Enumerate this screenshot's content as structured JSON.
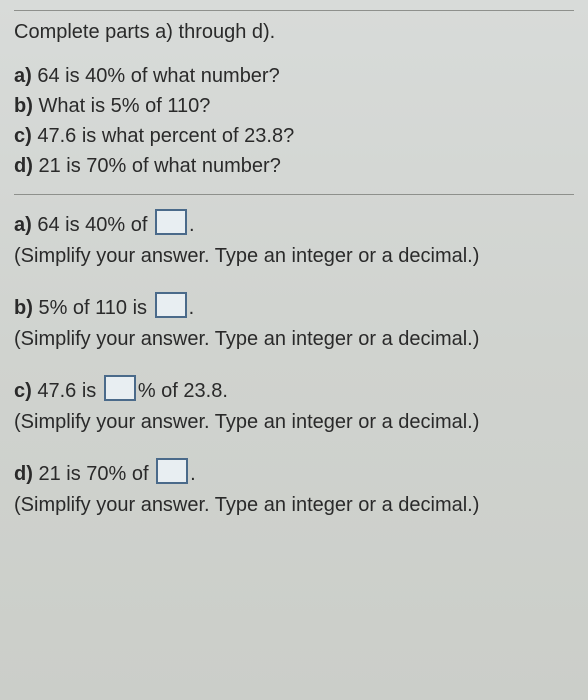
{
  "intro": "Complete parts a) through d).",
  "questions": {
    "a": {
      "label": "a)",
      "text": " 64 is 40% of what number?"
    },
    "b": {
      "label": "b)",
      "text": " What is 5% of 110?"
    },
    "c": {
      "label": "c)",
      "text": " 47.6 is what percent of 23.8?"
    },
    "d": {
      "label": "d)",
      "text": " 21 is 70% of what number?"
    }
  },
  "answers": {
    "a": {
      "label": "a)",
      "before": " 64 is 40% of ",
      "after": ".",
      "instr": "(Simplify your answer. Type an integer or a decimal.)"
    },
    "b": {
      "label": "b)",
      "before": " 5% of 110 is ",
      "after": ".",
      "instr": "(Simplify your answer. Type an integer or a decimal.)"
    },
    "c": {
      "label": "c)",
      "before": " 47.6 is ",
      "after": "% of 23.8.",
      "instr": "(Simplify your answer. Type an integer or a decimal.)"
    },
    "d": {
      "label": "d)",
      "before": " 21 is 70% of ",
      "after": ".",
      "instr": "(Simplify your answer. Type an integer or a decimal.)"
    }
  },
  "colors": {
    "text": "#2a2a2a",
    "rule": "#8e908c",
    "box_border": "#4a6a8a",
    "box_fill": "#e8eef2",
    "bg_top": "#d8dbd9",
    "bg_bottom": "#cbcec9"
  },
  "typography": {
    "font_family": "Arial",
    "font_size_pt": 15
  }
}
